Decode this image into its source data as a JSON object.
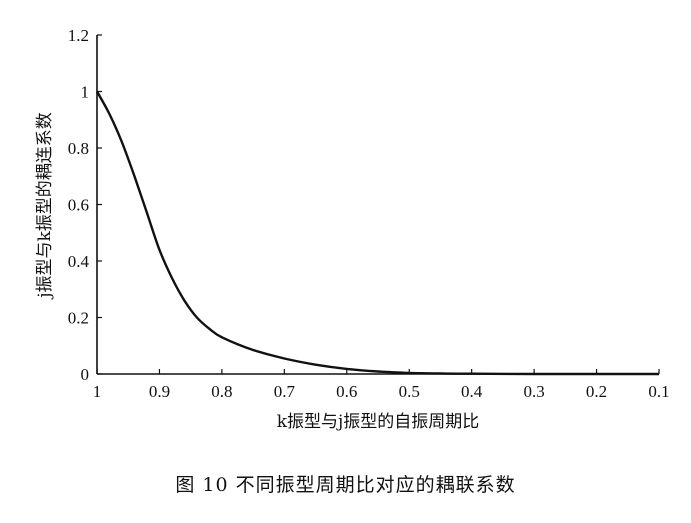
{
  "caption": "图 10   不同振型周期比对应的耦联系数",
  "chart_data": {
    "type": "line",
    "xlabel": "k振型与j振型的自振周期比",
    "ylabel": "j振型与k振型的耦连系数",
    "x_reversed": true,
    "xlim": [
      1,
      0.1
    ],
    "ylim": [
      0,
      1.2
    ],
    "x_ticks": [
      "1",
      "0.9",
      "0.8",
      "0.7",
      "0.6",
      "0.5",
      "0.4",
      "0.3",
      "0.2",
      "0.1"
    ],
    "y_ticks": [
      "0",
      "0.2",
      "0.4",
      "0.6",
      "0.8",
      "1",
      "1.2"
    ],
    "grid": false,
    "series": [
      {
        "color": "#111111",
        "x": [
          1.0,
          0.98,
          0.96,
          0.94,
          0.92,
          0.9,
          0.88,
          0.86,
          0.84,
          0.82,
          0.8,
          0.75,
          0.7,
          0.65,
          0.6,
          0.55,
          0.5,
          0.45,
          0.4,
          0.3,
          0.2,
          0.1
        ],
        "y": [
          1.0,
          0.92,
          0.82,
          0.7,
          0.57,
          0.44,
          0.34,
          0.26,
          0.2,
          0.16,
          0.13,
          0.085,
          0.055,
          0.033,
          0.018,
          0.009,
          0.004,
          0.002,
          0.001,
          0.0,
          0.0,
          0.0
        ]
      }
    ]
  }
}
